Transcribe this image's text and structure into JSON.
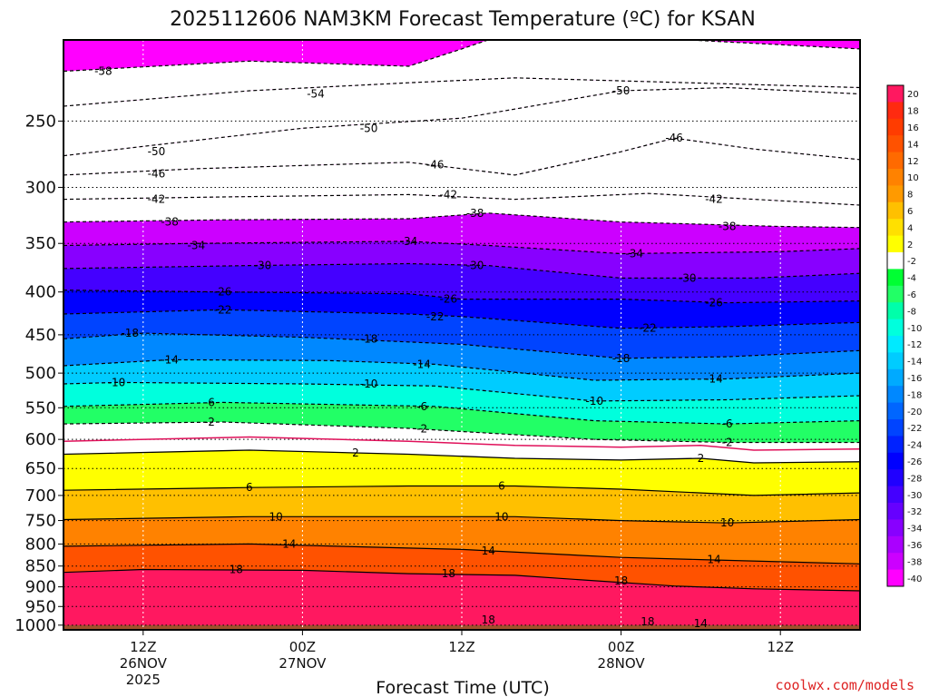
{
  "chart_data": {
    "type": "heatmap",
    "title": "2025112606 NAM3KM Forecast Temperature (ºC) for KSAN",
    "xlabel": "Forecast Time (UTC)",
    "credit": "coolwx.com/models",
    "x_ticks": [
      {
        "hour": 6,
        "lines": [
          "12Z",
          "26NOV",
          "2025"
        ]
      },
      {
        "hour": 18,
        "lines": [
          "00Z",
          "27NOV"
        ]
      },
      {
        "hour": 30,
        "lines": [
          "12Z"
        ]
      },
      {
        "hour": 42,
        "lines": [
          "00Z",
          "28NOV"
        ]
      },
      {
        "hour": 54,
        "lines": [
          "12Z"
        ]
      }
    ],
    "xlim_hours": [
      0,
      60
    ],
    "y_ticks": [
      250,
      300,
      350,
      400,
      450,
      500,
      550,
      600,
      650,
      700,
      750,
      800,
      850,
      900,
      950,
      1000
    ],
    "ylim_hPa": [
      200,
      1013
    ],
    "y_scale": "log-pressure",
    "surface_hPa": 1000,
    "surface_color": "#a0522d",
    "colorbar": {
      "levels": [
        20,
        18,
        16,
        14,
        12,
        10,
        8,
        6,
        4,
        2,
        -2,
        -4,
        -6,
        -8,
        -10,
        -12,
        -14,
        -16,
        -18,
        -20,
        -22,
        -24,
        -26,
        -28,
        -30,
        -32,
        -34,
        -36,
        -38,
        -40
      ],
      "colors": [
        "#ff1860",
        "#ff2a10",
        "#ff3c00",
        "#ff5200",
        "#ff6a00",
        "#ff8200",
        "#ff9a00",
        "#ffc000",
        "#ffe000",
        "#ffff00",
        "#ffffff",
        "#00ff33",
        "#22ff66",
        "#00ffaa",
        "#00ffdd",
        "#00eaff",
        "#00ccff",
        "#00aaff",
        "#0088ff",
        "#0066ff",
        "#0044ff",
        "#0022ff",
        "#0000ff",
        "#2000ff",
        "#4400ff",
        "#6600ff",
        "#8800ff",
        "#aa00ff",
        "#cc00ff",
        "#ff00ff"
      ]
    },
    "isotherms": [
      {
        "value": -58,
        "p": [
          [
            0,
            218
          ],
          [
            14,
            212
          ],
          [
            26,
            215
          ],
          [
            30,
            205
          ],
          [
            34,
            195
          ],
          [
            60,
            205
          ]
        ],
        "labels": [
          [
            3,
            218
          ]
        ]
      },
      {
        "value": -54,
        "p": [
          [
            0,
            240
          ],
          [
            14,
            230
          ],
          [
            26,
            225
          ],
          [
            34,
            222
          ],
          [
            60,
            228
          ]
        ],
        "labels": [
          [
            19,
            232
          ]
        ]
      },
      {
        "value": -50,
        "p": [
          [
            0,
            275
          ],
          [
            6,
            268
          ],
          [
            18,
            255
          ],
          [
            30,
            248
          ],
          [
            42,
            230
          ],
          [
            50,
            228
          ],
          [
            60,
            232
          ]
        ],
        "labels": [
          [
            7,
            272
          ],
          [
            23,
            255
          ],
          [
            42,
            230
          ]
        ]
      },
      {
        "value": -46,
        "p": [
          [
            0,
            290
          ],
          [
            10,
            285
          ],
          [
            26,
            280
          ],
          [
            34,
            290
          ],
          [
            42,
            272
          ],
          [
            46,
            262
          ],
          [
            52,
            270
          ],
          [
            60,
            278
          ]
        ],
        "labels": [
          [
            7,
            289
          ],
          [
            28,
            282
          ],
          [
            46,
            262
          ]
        ]
      },
      {
        "value": -42,
        "p": [
          [
            0,
            310
          ],
          [
            12,
            308
          ],
          [
            26,
            306
          ],
          [
            34,
            310
          ],
          [
            44,
            305
          ],
          [
            52,
            310
          ],
          [
            60,
            315
          ]
        ],
        "labels": [
          [
            7,
            310
          ],
          [
            29,
            306
          ],
          [
            49,
            310
          ]
        ]
      },
      {
        "value": -38,
        "p": [
          [
            0,
            330
          ],
          [
            12,
            328
          ],
          [
            26,
            327
          ],
          [
            32,
            322
          ],
          [
            42,
            330
          ],
          [
            54,
            334
          ],
          [
            60,
            335
          ]
        ],
        "labels": [
          [
            8,
            330
          ],
          [
            31,
            322
          ],
          [
            50,
            334
          ]
        ]
      },
      {
        "value": -34,
        "p": [
          [
            0,
            352
          ],
          [
            10,
            350
          ],
          [
            26,
            348
          ],
          [
            32,
            352
          ],
          [
            42,
            360
          ],
          [
            54,
            358
          ],
          [
            60,
            355
          ]
        ],
        "labels": [
          [
            10,
            352
          ],
          [
            26,
            348
          ],
          [
            43,
            360
          ]
        ]
      },
      {
        "value": -30,
        "p": [
          [
            0,
            375
          ],
          [
            14,
            372
          ],
          [
            26,
            370
          ],
          [
            32,
            372
          ],
          [
            42,
            385
          ],
          [
            52,
            385
          ],
          [
            60,
            380
          ]
        ],
        "labels": [
          [
            15,
            372
          ],
          [
            31,
            372
          ],
          [
            47,
            385
          ]
        ]
      },
      {
        "value": -26,
        "p": [
          [
            0,
            398
          ],
          [
            12,
            400
          ],
          [
            26,
            402
          ],
          [
            30,
            408
          ],
          [
            42,
            408
          ],
          [
            50,
            412
          ],
          [
            60,
            410
          ]
        ],
        "labels": [
          [
            12,
            400
          ],
          [
            29,
            408
          ],
          [
            49,
            412
          ]
        ]
      },
      {
        "value": -22,
        "p": [
          [
            0,
            425
          ],
          [
            12,
            420
          ],
          [
            26,
            425
          ],
          [
            30,
            428
          ],
          [
            42,
            442
          ],
          [
            50,
            440
          ],
          [
            60,
            435
          ]
        ],
        "labels": [
          [
            12,
            420
          ],
          [
            28,
            428
          ],
          [
            44,
            442
          ]
        ]
      },
      {
        "value": -18,
        "p": [
          [
            0,
            455
          ],
          [
            6,
            448
          ],
          [
            18,
            453
          ],
          [
            30,
            462
          ],
          [
            42,
            480
          ],
          [
            50,
            478
          ],
          [
            60,
            470
          ]
        ],
        "labels": [
          [
            5,
            448
          ],
          [
            23,
            455
          ],
          [
            42,
            480
          ]
        ]
      },
      {
        "value": -14,
        "p": [
          [
            0,
            490
          ],
          [
            8,
            482
          ],
          [
            20,
            483
          ],
          [
            28,
            488
          ],
          [
            40,
            510
          ],
          [
            50,
            508
          ],
          [
            60,
            500
          ]
        ],
        "labels": [
          [
            8,
            482
          ],
          [
            27,
            488
          ],
          [
            49,
            508
          ]
        ]
      },
      {
        "value": -10,
        "p": [
          [
            0,
            515
          ],
          [
            4,
            513
          ],
          [
            18,
            515
          ],
          [
            28,
            518
          ],
          [
            40,
            540
          ],
          [
            50,
            538
          ],
          [
            60,
            532
          ]
        ],
        "labels": [
          [
            4,
            513
          ],
          [
            23,
            515
          ],
          [
            40,
            540
          ]
        ]
      },
      {
        "value": -6,
        "p": [
          [
            0,
            548
          ],
          [
            12,
            542
          ],
          [
            28,
            548
          ],
          [
            40,
            570
          ],
          [
            50,
            575
          ],
          [
            60,
            570
          ]
        ],
        "labels": [
          [
            11,
            542
          ],
          [
            27,
            548
          ],
          [
            50,
            575
          ]
        ]
      },
      {
        "value": -2,
        "p": [
          [
            0,
            575
          ],
          [
            12,
            572
          ],
          [
            26,
            582
          ],
          [
            40,
            600
          ],
          [
            50,
            605
          ],
          [
            60,
            605
          ]
        ],
        "labels": [
          [
            11,
            572
          ],
          [
            27,
            583
          ],
          [
            50,
            605
          ]
        ]
      },
      {
        "value": 2,
        "p": [
          [
            0,
            625
          ],
          [
            14,
            618
          ],
          [
            26,
            625
          ],
          [
            34,
            632
          ],
          [
            42,
            635
          ],
          [
            48,
            632
          ],
          [
            52,
            640
          ],
          [
            60,
            638
          ]
        ],
        "labels": [
          [
            22,
            623
          ],
          [
            48,
            632
          ]
        ]
      },
      {
        "value": 6,
        "p": [
          [
            0,
            690
          ],
          [
            14,
            685
          ],
          [
            26,
            682
          ],
          [
            34,
            682
          ],
          [
            42,
            688
          ],
          [
            52,
            700
          ],
          [
            60,
            695
          ]
        ],
        "labels": [
          [
            14,
            685
          ],
          [
            33,
            682
          ]
        ]
      },
      {
        "value": 10,
        "p": [
          [
            0,
            748
          ],
          [
            14,
            742
          ],
          [
            34,
            742
          ],
          [
            42,
            750
          ],
          [
            50,
            755
          ],
          [
            60,
            748
          ]
        ],
        "labels": [
          [
            16,
            742
          ],
          [
            33,
            742
          ],
          [
            50,
            755
          ]
        ]
      },
      {
        "value": 14,
        "p": [
          [
            0,
            805
          ],
          [
            14,
            800
          ],
          [
            30,
            812
          ],
          [
            42,
            830
          ],
          [
            48,
            835
          ],
          [
            60,
            845
          ]
        ],
        "labels": [
          [
            17,
            800
          ],
          [
            32,
            815
          ],
          [
            49,
            835
          ]
        ]
      },
      {
        "value": 18,
        "p": [
          [
            0,
            865
          ],
          [
            6,
            858
          ],
          [
            18,
            860
          ],
          [
            26,
            868
          ],
          [
            34,
            872
          ],
          [
            40,
            885
          ],
          [
            46,
            898
          ],
          [
            52,
            905
          ],
          [
            60,
            910
          ]
        ],
        "labels": [
          [
            13,
            858
          ],
          [
            29,
            868
          ],
          [
            42,
            885
          ]
        ]
      }
    ],
    "inner_labels": [
      {
        "value": 18,
        "at": [
          32,
          985
        ]
      },
      {
        "value": 18,
        "at": [
          44,
          990
        ]
      },
      {
        "value": 14,
        "at": [
          48,
          995
        ]
      }
    ]
  }
}
